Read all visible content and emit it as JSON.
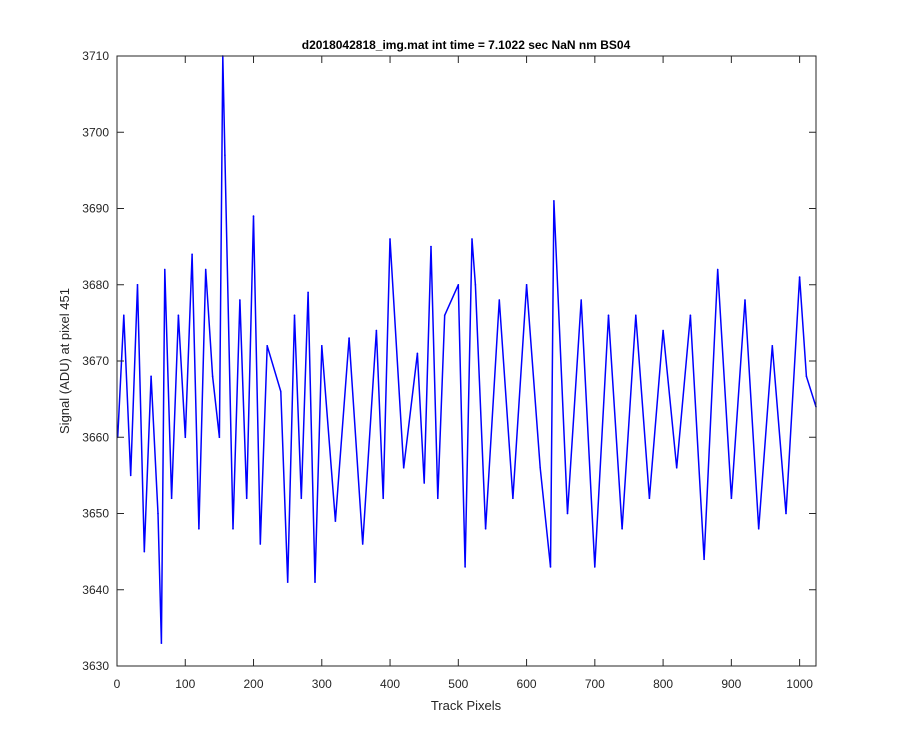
{
  "chart_data": {
    "type": "line",
    "title": "d2018042818_img.mat int time = 7.1022 sec  NaN nm BS04",
    "xlabel": "Track Pixels",
    "ylabel": "Signal (ADU) at pixel 451",
    "xlim": [
      0,
      1024
    ],
    "ylim": [
      3630,
      3710
    ],
    "x_ticks": [
      0,
      100,
      200,
      300,
      400,
      500,
      600,
      700,
      800,
      900,
      1000
    ],
    "y_ticks": [
      3630,
      3640,
      3650,
      3660,
      3670,
      3680,
      3690,
      3700,
      3710
    ],
    "x_tick_labels": [
      "0",
      "100",
      "200",
      "300",
      "400",
      "500",
      "600",
      "700",
      "800",
      "900",
      "1000"
    ],
    "y_tick_labels": [
      "3630",
      "3640",
      "3650",
      "3660",
      "3670",
      "3680",
      "3690",
      "3700",
      "3710"
    ],
    "grid": false,
    "series": [
      {
        "color": "#0000ff",
        "x": [
          1,
          10,
          20,
          30,
          40,
          50,
          60,
          65,
          70,
          80,
          90,
          100,
          110,
          120,
          130,
          140,
          150,
          155,
          158,
          170,
          180,
          190,
          200,
          210,
          220,
          240,
          250,
          260,
          270,
          280,
          290,
          300,
          320,
          340,
          360,
          380,
          390,
          400,
          420,
          440,
          450,
          460,
          470,
          480,
          500,
          510,
          520,
          525,
          540,
          560,
          580,
          600,
          620,
          635,
          640,
          660,
          680,
          700,
          720,
          740,
          760,
          780,
          800,
          820,
          840,
          860,
          880,
          900,
          920,
          940,
          960,
          980,
          1000,
          1010,
          1024
        ],
        "values": [
          3660,
          3676,
          3655,
          3680,
          3645,
          3668,
          3650,
          3633,
          3682,
          3652,
          3676,
          3660,
          3684,
          3648,
          3682,
          3668,
          3660,
          3710,
          3697,
          3648,
          3678,
          3652,
          3689,
          3646,
          3672,
          3666,
          3641,
          3676,
          3652,
          3679,
          3641,
          3672,
          3649,
          3673,
          3646,
          3674,
          3652,
          3686,
          3656,
          3671,
          3654,
          3685,
          3652,
          3676,
          3680,
          3643,
          3686,
          3680,
          3648,
          3678,
          3652,
          3680,
          3656,
          3643,
          3691,
          3650,
          3678,
          3643,
          3676,
          3648,
          3676,
          3652,
          3674,
          3656,
          3676,
          3644,
          3682,
          3652,
          3678,
          3648,
          3672,
          3650,
          3681,
          3668,
          3664
        ]
      }
    ]
  }
}
